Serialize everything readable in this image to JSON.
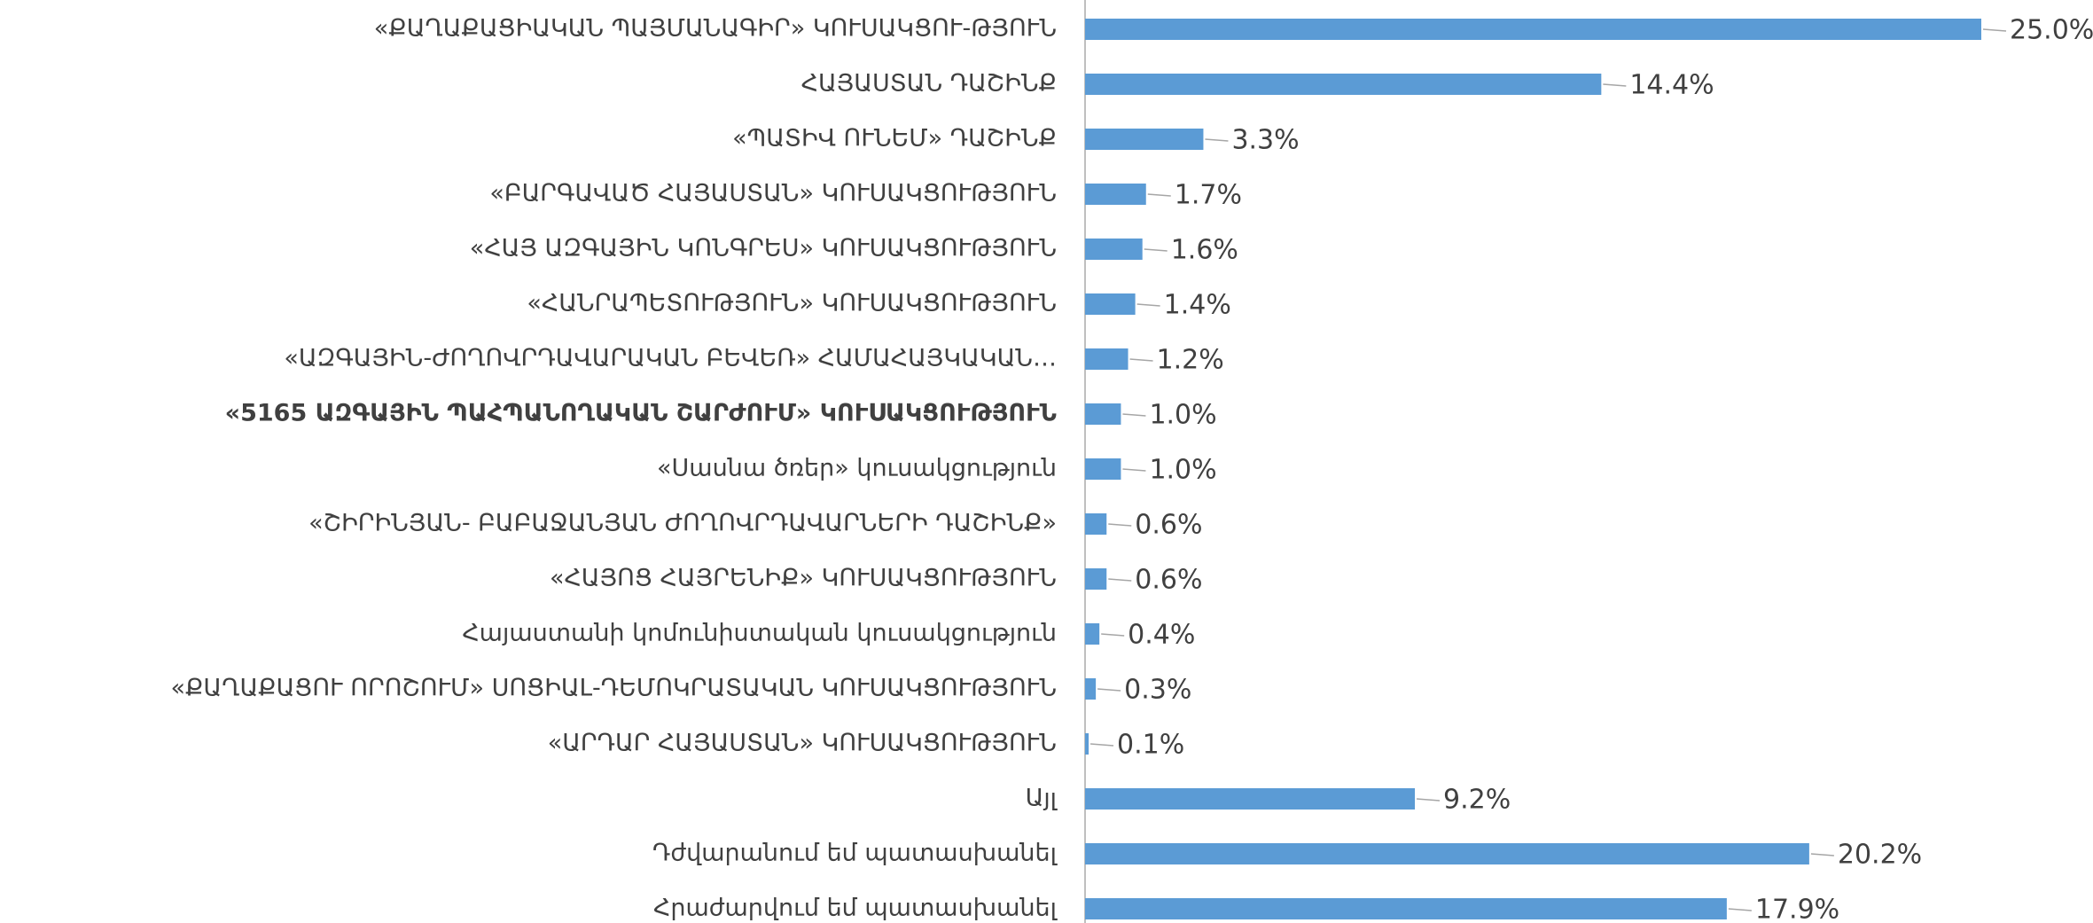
{
  "chart_data": {
    "type": "bar",
    "orientation": "horizontal",
    "color": "#5b9bd5",
    "categories": [
      "«ՔԱՂԱՔԱՑԻԱԿԱՆ ՊԱՅՄԱՆԱԳԻՐ» ԿՈՒՍԱԿՑՈՒ-ԹՅՈՒՆ",
      "ՀԱՅԱՍՏԱՆ ԴԱՇԻՆՔ",
      "«ՊԱՏԻՎ ՈՒՆԵՄ» ԴԱՇԻՆՔ",
      "«ԲԱՐԳԱՎԱԾ ՀԱՅԱՍՏԱՆ» ԿՈՒՍԱԿՑՈՒԹՅՈՒՆ",
      "«ՀԱՅ ԱԶԳԱՅԻՆ ԿՈՆԳՐԵՍ» ԿՈՒՍԱԿՑՈՒԹՅՈՒՆ",
      "«ՀԱՆՐԱՊԵՏՈՒԹՅՈՒՆ» ԿՈՒՍԱԿՑՈՒԹՅՈՒՆ",
      "«ԱԶԳԱՅԻՆ-ԺՈՂՈՎՐԴԱՎԱՐԱԿԱՆ ԲԵՎԵՌ» ՀԱՄԱՀԱՅԿԱԿԱՆ…",
      "«5165 ԱԶԳԱՅԻՆ ՊԱՀՊԱՆՈՂԱԿԱՆ ՇԱՐԺՈՒՄ»  ԿՈՒՍԱԿՑՈՒԹՅՈՒՆ",
      "«Սասնա ծռեր»  կուսակցություն",
      "«ՇԻՐԻՆՅԱՆ- ԲԱԲԱՋԱՆՅԱՆ ԺՈՂՈՎՐԴԱՎԱՐՆԵՐԻ ԴԱՇԻՆՔ»",
      "«ՀԱՅՈՑ ՀԱՅՐԵՆԻՔ» ԿՈՒՍԱԿՑՈՒԹՅՈՒՆ",
      "Հայաստանի կոմունիստական կուսակցություն",
      "«ՔԱՂԱՔԱՑՈՒ ՈՐՈՇՈՒՄ» ՍՈՑԻԱԼ-ԴԵՄՈԿՐԱՏԱԿԱՆ ԿՈՒՍԱԿՑՈՒԹՅՈՒՆ",
      "«ԱՐԴԱՐ  ՀԱՅԱՍՏԱՆ» ԿՈՒՍԱԿՑՈՒԹՅՈՒՆ",
      "Այլ",
      "Դժվարանում եմ պատասխանել",
      "Հրաժարվում եմ պատասխանել"
    ],
    "values": [
      25.0,
      14.4,
      3.3,
      1.7,
      1.6,
      1.4,
      1.2,
      1.0,
      1.0,
      0.6,
      0.6,
      0.4,
      0.3,
      0.1,
      9.2,
      20.2,
      17.9
    ],
    "value_labels": [
      "25.0%",
      "14.4%",
      "3.3%",
      "1.7%",
      "1.6%",
      "1.4%",
      "1.2%",
      "1.0%",
      "1.0%",
      "0.6%",
      "0.6%",
      "0.4%",
      "0.3%",
      "0.1%",
      "9.2%",
      "20.2%",
      "17.9%"
    ],
    "xlim": [
      0,
      25
    ]
  }
}
